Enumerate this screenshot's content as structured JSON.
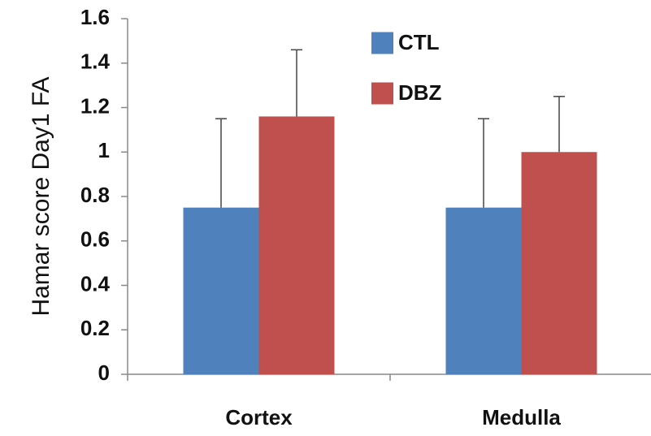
{
  "chart_data": {
    "type": "bar",
    "title": "",
    "xlabel": "",
    "ylabel": "Hamar score Day1 FA",
    "categories": [
      "Cortex",
      "Medulla"
    ],
    "series": [
      {
        "name": "CTL",
        "color": "#4f81bd",
        "values": [
          0.75,
          0.75
        ],
        "error": [
          0.4,
          0.4
        ]
      },
      {
        "name": "DBZ",
        "color": "#c0504d",
        "values": [
          1.16,
          1.0
        ],
        "error": [
          0.3,
          0.25
        ]
      }
    ],
    "ylim": [
      0,
      1.6
    ],
    "yticks": [
      0,
      0.2,
      0.4,
      0.6,
      0.8,
      1,
      1.2,
      1.4,
      1.6
    ],
    "ytick_labels": [
      "0",
      "0.2",
      "0.4",
      "0.6",
      "0.8",
      "1",
      "1.2",
      "1.4",
      "1.6"
    ],
    "grid": false,
    "legend_position": "top-center"
  }
}
